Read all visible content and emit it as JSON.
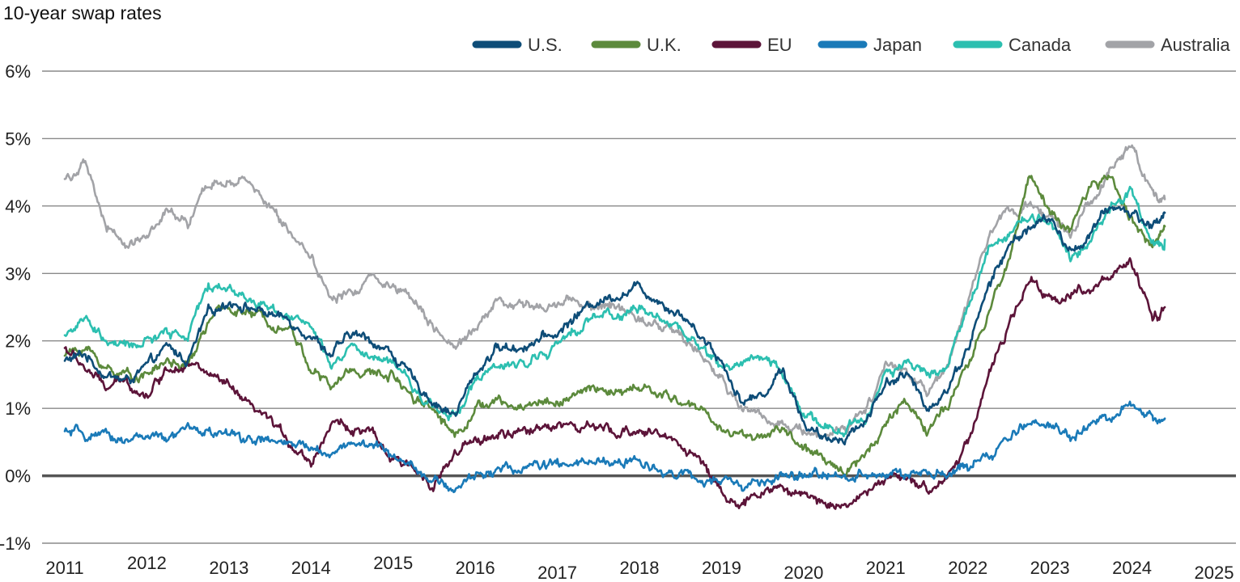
{
  "chart_data": {
    "type": "line",
    "title": "10-year swap rates",
    "xlabel": "",
    "ylabel": "",
    "x_ticks": [
      "2011",
      "2012",
      "2013",
      "2014",
      "2015",
      "2016",
      "2017",
      "2018",
      "2019",
      "2020",
      "2021",
      "2022",
      "2023",
      "2024",
      "2025"
    ],
    "y_ticks": [
      "-1%",
      "0%",
      "1%",
      "2%",
      "3%",
      "4%",
      "5%",
      "6%"
    ],
    "xlim": [
      2011.0,
      2025.0
    ],
    "ylim": [
      -1,
      6
    ],
    "grid": true,
    "legend_position": "top-right",
    "x": [
      2011.0,
      2011.25,
      2011.5,
      2011.75,
      2012.0,
      2012.25,
      2012.5,
      2012.75,
      2013.0,
      2013.25,
      2013.5,
      2013.75,
      2014.0,
      2014.25,
      2014.5,
      2014.75,
      2015.0,
      2015.25,
      2015.5,
      2015.75,
      2016.0,
      2016.25,
      2016.5,
      2016.75,
      2017.0,
      2017.25,
      2017.5,
      2017.75,
      2018.0,
      2018.25,
      2018.5,
      2018.75,
      2019.0,
      2019.25,
      2019.5,
      2019.75,
      2020.0,
      2020.25,
      2020.5,
      2020.75,
      2021.0,
      2021.25,
      2021.5,
      2021.75,
      2022.0,
      2022.25,
      2022.5,
      2022.75,
      2023.0,
      2023.25,
      2023.5,
      2023.75,
      2024.0,
      2024.25,
      2024.4
    ],
    "series": [
      {
        "name": "U.S.",
        "color": "#0e4d78",
        "values": [
          1.7,
          1.8,
          1.5,
          1.4,
          1.6,
          1.9,
          1.7,
          2.4,
          2.6,
          2.5,
          2.4,
          2.3,
          2.1,
          1.8,
          2.1,
          2.0,
          1.8,
          1.4,
          1.1,
          0.9,
          1.5,
          1.9,
          1.9,
          2.0,
          2.1,
          2.4,
          2.6,
          2.7,
          2.8,
          2.6,
          2.4,
          2.1,
          1.7,
          1.1,
          1.2,
          1.6,
          0.8,
          0.5,
          0.6,
          0.8,
          1.4,
          1.5,
          1.0,
          1.3,
          1.9,
          2.8,
          3.4,
          3.7,
          3.8,
          3.3,
          3.6,
          4.0,
          3.9,
          3.7,
          3.9
        ]
      },
      {
        "name": "U.K.",
        "color": "#5c8a3c",
        "values": [
          1.8,
          1.9,
          1.6,
          1.5,
          1.5,
          1.7,
          1.6,
          2.3,
          2.5,
          2.4,
          2.3,
          2.2,
          1.6,
          1.3,
          1.6,
          1.5,
          1.5,
          1.2,
          1.0,
          0.6,
          1.0,
          1.1,
          1.0,
          1.1,
          1.1,
          1.2,
          1.3,
          1.2,
          1.3,
          1.2,
          1.1,
          1.0,
          0.7,
          0.6,
          0.6,
          0.7,
          0.4,
          0.2,
          0.1,
          0.3,
          0.8,
          1.1,
          0.7,
          1.0,
          1.6,
          2.4,
          3.2,
          4.5,
          3.9,
          3.6,
          4.3,
          4.4,
          3.8,
          3.4,
          3.7
        ]
      },
      {
        "name": "EU",
        "color": "#5c1439",
        "values": [
          1.9,
          1.6,
          1.3,
          1.4,
          1.2,
          1.6,
          1.7,
          1.5,
          1.3,
          1.0,
          0.8,
          0.5,
          0.2,
          0.8,
          0.7,
          0.6,
          0.2,
          0.1,
          -0.1,
          0.3,
          0.5,
          0.6,
          0.6,
          0.7,
          0.8,
          0.7,
          0.7,
          0.6,
          0.7,
          0.6,
          0.5,
          0.2,
          -0.2,
          -0.5,
          -0.2,
          -0.2,
          -0.3,
          -0.4,
          -0.4,
          -0.3,
          0.0,
          -0.1,
          -0.2,
          0.0,
          0.5,
          1.5,
          2.2,
          2.9,
          2.6,
          2.7,
          2.8,
          3.0,
          3.1,
          2.3,
          2.5
        ]
      },
      {
        "name": "Japan",
        "color": "#1a7ab8",
        "values": [
          0.65,
          0.6,
          0.55,
          0.55,
          0.6,
          0.5,
          0.7,
          0.65,
          0.6,
          0.55,
          0.5,
          0.45,
          0.4,
          0.35,
          0.5,
          0.45,
          0.3,
          0.2,
          -0.1,
          -0.2,
          0.0,
          0.1,
          0.1,
          0.15,
          0.15,
          0.15,
          0.2,
          0.2,
          0.2,
          0.1,
          0.05,
          -0.1,
          -0.1,
          -0.15,
          -0.1,
          -0.05,
          0.0,
          0.0,
          0.0,
          0.05,
          0.05,
          0.0,
          0.0,
          0.05,
          0.1,
          0.3,
          0.5,
          0.8,
          0.8,
          0.6,
          0.7,
          0.9,
          1.0,
          0.85,
          0.85
        ]
      },
      {
        "name": "Canada",
        "color": "#2cbfb0",
        "values": [
          2.1,
          2.3,
          2.0,
          1.9,
          2.0,
          2.1,
          2.1,
          2.8,
          2.8,
          2.6,
          2.5,
          2.4,
          2.2,
          1.6,
          1.9,
          1.7,
          1.7,
          1.3,
          1.0,
          0.9,
          1.4,
          1.6,
          1.6,
          1.8,
          1.9,
          2.2,
          2.4,
          2.4,
          2.5,
          2.3,
          2.2,
          1.9,
          1.6,
          1.7,
          1.8,
          1.5,
          0.9,
          0.7,
          0.7,
          0.8,
          1.5,
          1.7,
          1.5,
          1.6,
          2.5,
          3.4,
          3.6,
          3.9,
          3.8,
          3.2,
          3.5,
          4.0,
          4.2,
          3.4,
          3.5
        ]
      },
      {
        "name": "Australia",
        "color": "#a2a3a7",
        "values": [
          4.4,
          4.6,
          3.7,
          3.4,
          3.6,
          3.9,
          3.7,
          4.3,
          4.4,
          4.3,
          4.0,
          3.6,
          3.3,
          2.6,
          2.7,
          3.0,
          2.8,
          2.7,
          2.2,
          1.8,
          2.2,
          2.6,
          2.5,
          2.5,
          2.6,
          2.6,
          2.5,
          2.5,
          2.3,
          2.3,
          2.1,
          1.8,
          1.4,
          1.0,
          0.9,
          0.8,
          0.7,
          0.6,
          0.7,
          0.9,
          1.6,
          1.5,
          1.2,
          1.6,
          2.5,
          3.6,
          3.9,
          4.0,
          3.9,
          3.6,
          4.1,
          4.5,
          4.8,
          4.2,
          4.1
        ]
      }
    ]
  }
}
